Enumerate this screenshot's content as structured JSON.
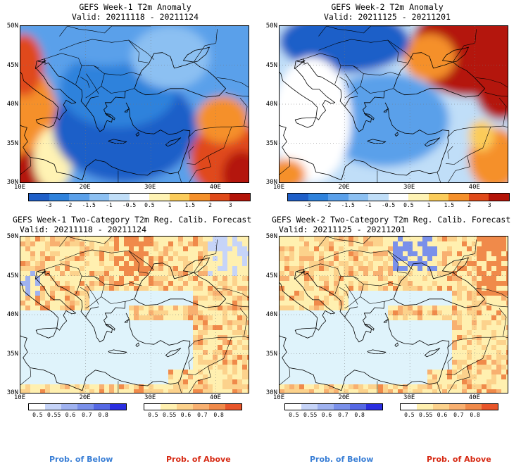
{
  "colors": {
    "anom": [
      "#1f5fc8",
      "#2f82dc",
      "#5aa0ea",
      "#8cc0f2",
      "#c0def8",
      "#ffffff",
      "#fff3b4",
      "#fbcc5a",
      "#f5902a",
      "#e04a1a",
      "#b41408"
    ],
    "prob_below": [
      "#ffffff",
      "#c6d4f8",
      "#9fb2f0",
      "#7a90ea",
      "#5568e4",
      "#2a2ee0"
    ],
    "prob_above": [
      "#ffffff",
      "#fff0b0",
      "#fcd28c",
      "#f8b070",
      "#f08a4a",
      "#e8552a"
    ],
    "sea_fill": "#dff3fb",
    "below_label": "#3a7fd6",
    "above_label": "#d62a14"
  },
  "panels": [
    {
      "id": "anom-week1",
      "title_line1": "GEFS Week-1 T2m Anomaly",
      "title_line2": "Valid: 20211118 - 20211124",
      "kind": "anomaly"
    },
    {
      "id": "anom-week2",
      "title_line1": "GEFS Week-2 T2m Anomaly",
      "title_line2": "Valid: 20211125 - 20211201",
      "kind": "anomaly"
    },
    {
      "id": "prob-week1",
      "title_line1": "GEFS Week-1 Two-Category T2m Reg. Calib. Forecast",
      "title_line2": "Valid: 20211118 - 20211124",
      "kind": "probability"
    },
    {
      "id": "prob-week2",
      "title_line1": "GEFS Week-2 Two-Category T2m Reg. Calib. Forecast",
      "title_line2": "Valid: 20211125 - 20211201",
      "kind": "probability"
    }
  ],
  "lat_labels": [
    "50N",
    "45N",
    "40N",
    "35N",
    "30N"
  ],
  "lon_labels": [
    "10E",
    "20E",
    "30E",
    "40E"
  ],
  "anom_ticks": [
    "-3",
    "-2",
    "-1.5",
    "-1",
    "-0.5",
    "0.5",
    "1",
    "1.5",
    "2",
    "3"
  ],
  "prob_ticks": [
    "0.5",
    "0.55",
    "0.6",
    "0.7",
    "0.8"
  ],
  "prob_below_label": "Prob. of Below",
  "prob_above_label": "Prob. of Above"
}
